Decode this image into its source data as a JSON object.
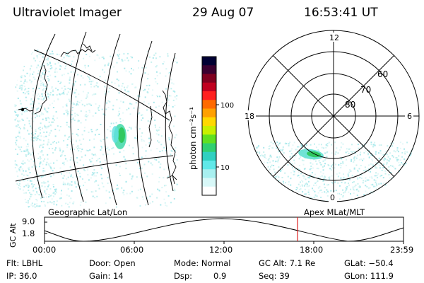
{
  "header": {
    "instrument": "Ultraviolet Imager",
    "date": "29 Aug 07",
    "time": "16:53:41 UT"
  },
  "colorbar": {
    "unit_label": "photon cm⁻²s⁻¹",
    "ticks": [
      "100",
      "10"
    ],
    "colors": [
      "#000033",
      "#3a0030",
      "#800020",
      "#c00020",
      "#ff2020",
      "#ff6a00",
      "#ffa000",
      "#ffd800",
      "#c8f000",
      "#60e020",
      "#30d070",
      "#30d0c0",
      "#60e8e8",
      "#a8f0f0",
      "#d8f8f8",
      "#ffffff"
    ]
  },
  "polar_plot": {
    "mlt_labels": [
      "12",
      "18",
      "6",
      "0"
    ],
    "lat_labels": [
      "60",
      "70",
      "80"
    ]
  },
  "orbit_panel": {
    "left_title": "Geographic Lat/Lon",
    "right_title": "Apex MLat/MLT",
    "y_axis_label": "GC Alt",
    "y_ticks": [
      "9.0",
      "1.8"
    ],
    "x_ticks": [
      "00:00",
      "06:00",
      "12:00",
      "18:00",
      "23:59"
    ],
    "current_time_fraction": 0.705,
    "marker_color": "#dd2020"
  },
  "info": {
    "flt": "Flt: LBHL",
    "door": "Door: Open",
    "mode": "Mode: Normal",
    "gc_alt": "GC Alt: 7.1 Re",
    "glat": "GLat: −50.4",
    "ip": "IP: 36.0",
    "gain": "Gain: 14",
    "dsp_label": "Dsp:",
    "dsp_value": "0.9",
    "seq": "Seq: 39",
    "glon": "GLon: 111.9"
  }
}
